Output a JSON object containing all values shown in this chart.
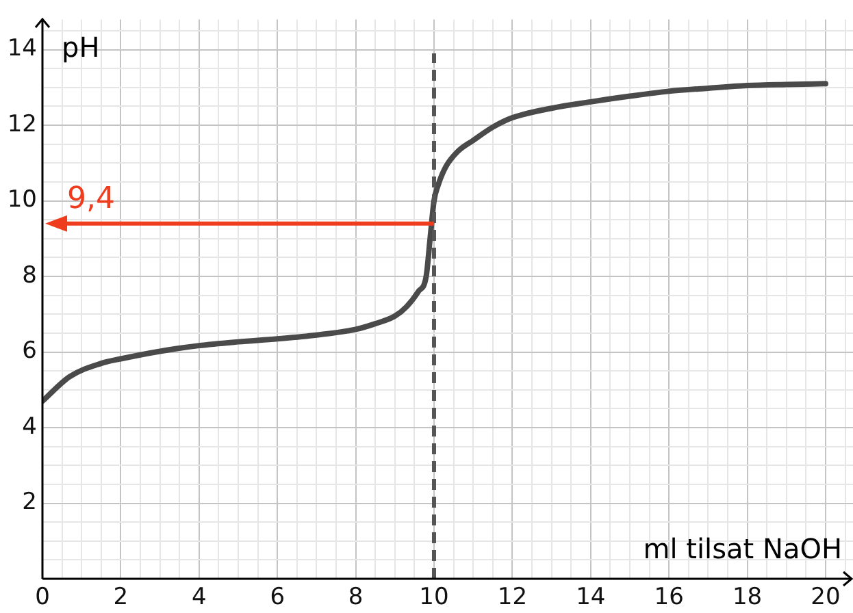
{
  "chart_data": {
    "type": "line",
    "xlabel": "ml tilsat NaOH",
    "ylabel": "pH",
    "x": [
      0,
      0.7,
      1.5,
      2,
      3,
      4,
      5,
      6,
      7,
      8,
      8.5,
      9,
      9.3,
      9.6,
      9.8,
      9.9,
      10,
      10.1,
      10.3,
      10.6,
      11,
      11.5,
      12,
      13,
      14,
      15,
      16,
      17,
      18,
      19,
      20
    ],
    "series": [
      {
        "color": "#4a4a4a",
        "values": [
          4.7,
          5.35,
          5.7,
          5.82,
          6.02,
          6.17,
          6.27,
          6.35,
          6.45,
          6.6,
          6.75,
          6.95,
          7.2,
          7.6,
          8.0,
          9.0,
          10.0,
          10.4,
          10.9,
          11.3,
          11.6,
          11.95,
          12.2,
          12.45,
          12.62,
          12.77,
          12.9,
          12.98,
          13.05,
          13.08,
          13.1
        ]
      }
    ],
    "xlim": [
      0,
      20.7
    ],
    "ylim": [
      0,
      14.8
    ],
    "xticks": [
      0,
      {
        "value": 0.5,
        "label": null
      },
      {
        "value": 1,
        "label": null
      },
      {
        "value": 1.5,
        "label": null
      },
      2,
      {
        "value": 2.5,
        "label": null
      },
      {
        "value": 3,
        "label": null
      },
      {
        "value": 3.5,
        "label": null
      },
      4,
      {
        "value": 4.5,
        "label": null
      },
      {
        "value": 5,
        "label": null
      },
      {
        "value": 5.5,
        "label": null
      },
      6,
      {
        "value": 6.5,
        "label": null
      },
      {
        "value": 7,
        "label": null
      },
      {
        "value": 7.5,
        "label": null
      },
      8,
      {
        "value": 8.5,
        "label": null
      },
      {
        "value": 9,
        "label": null
      },
      {
        "value": 9.5,
        "label": null
      },
      10,
      {
        "value": 10.5,
        "label": null
      },
      {
        "value": 11,
        "label": null
      },
      {
        "value": 11.5,
        "label": null
      },
      12,
      {
        "value": 12.5,
        "label": null
      },
      {
        "value": 13,
        "label": null
      },
      {
        "value": 13.5,
        "label": null
      },
      14,
      {
        "value": 14.5,
        "label": null
      },
      {
        "value": 15,
        "label": null
      },
      {
        "value": 15.5,
        "label": null
      },
      16,
      {
        "value": 16.5,
        "label": null
      },
      {
        "value": 17,
        "label": null
      },
      {
        "value": 17.5,
        "label": null
      },
      18,
      {
        "value": 18.5,
        "label": null
      },
      {
        "value": 19,
        "label": null
      },
      {
        "value": 19.5,
        "label": null
      },
      20,
      {
        "value": 20.5,
        "label": null
      }
    ],
    "yticks": [
      {
        "value": 0,
        "label": null
      },
      {
        "value": 0.5,
        "label": null
      },
      {
        "value": 1,
        "label": null
      },
      {
        "value": 1.5,
        "label": null
      },
      2,
      {
        "value": 2.5,
        "label": null
      },
      {
        "value": 3,
        "label": null
      },
      {
        "value": 3.5,
        "label": null
      },
      4,
      {
        "value": 4.5,
        "label": null
      },
      {
        "value": 5,
        "label": null
      },
      {
        "value": 5.5,
        "label": null
      },
      6,
      {
        "value": 6.5,
        "label": null
      },
      {
        "value": 7,
        "label": null
      },
      {
        "value": 7.5,
        "label": null
      },
      8,
      {
        "value": 8.5,
        "label": null
      },
      {
        "value": 9,
        "label": null
      },
      {
        "value": 9.5,
        "label": null
      },
      10,
      {
        "value": 10.5,
        "label": null
      },
      {
        "value": 11,
        "label": null
      },
      {
        "value": 11.5,
        "label": null
      },
      12,
      {
        "value": 12.5,
        "label": null
      },
      {
        "value": 13,
        "label": null
      },
      {
        "value": 13.5,
        "label": null
      },
      14,
      {
        "value": 14.5,
        "label": null
      }
    ],
    "grid": true,
    "marker": "none",
    "line_style": "solid",
    "ref_lines": [
      {
        "axis": "x",
        "value": 10,
        "color": "#555555",
        "line_style": "dashed"
      }
    ],
    "annotations": [
      {
        "text": "9,4",
        "x": 10,
        "y": 9.4
      }
    ]
  }
}
